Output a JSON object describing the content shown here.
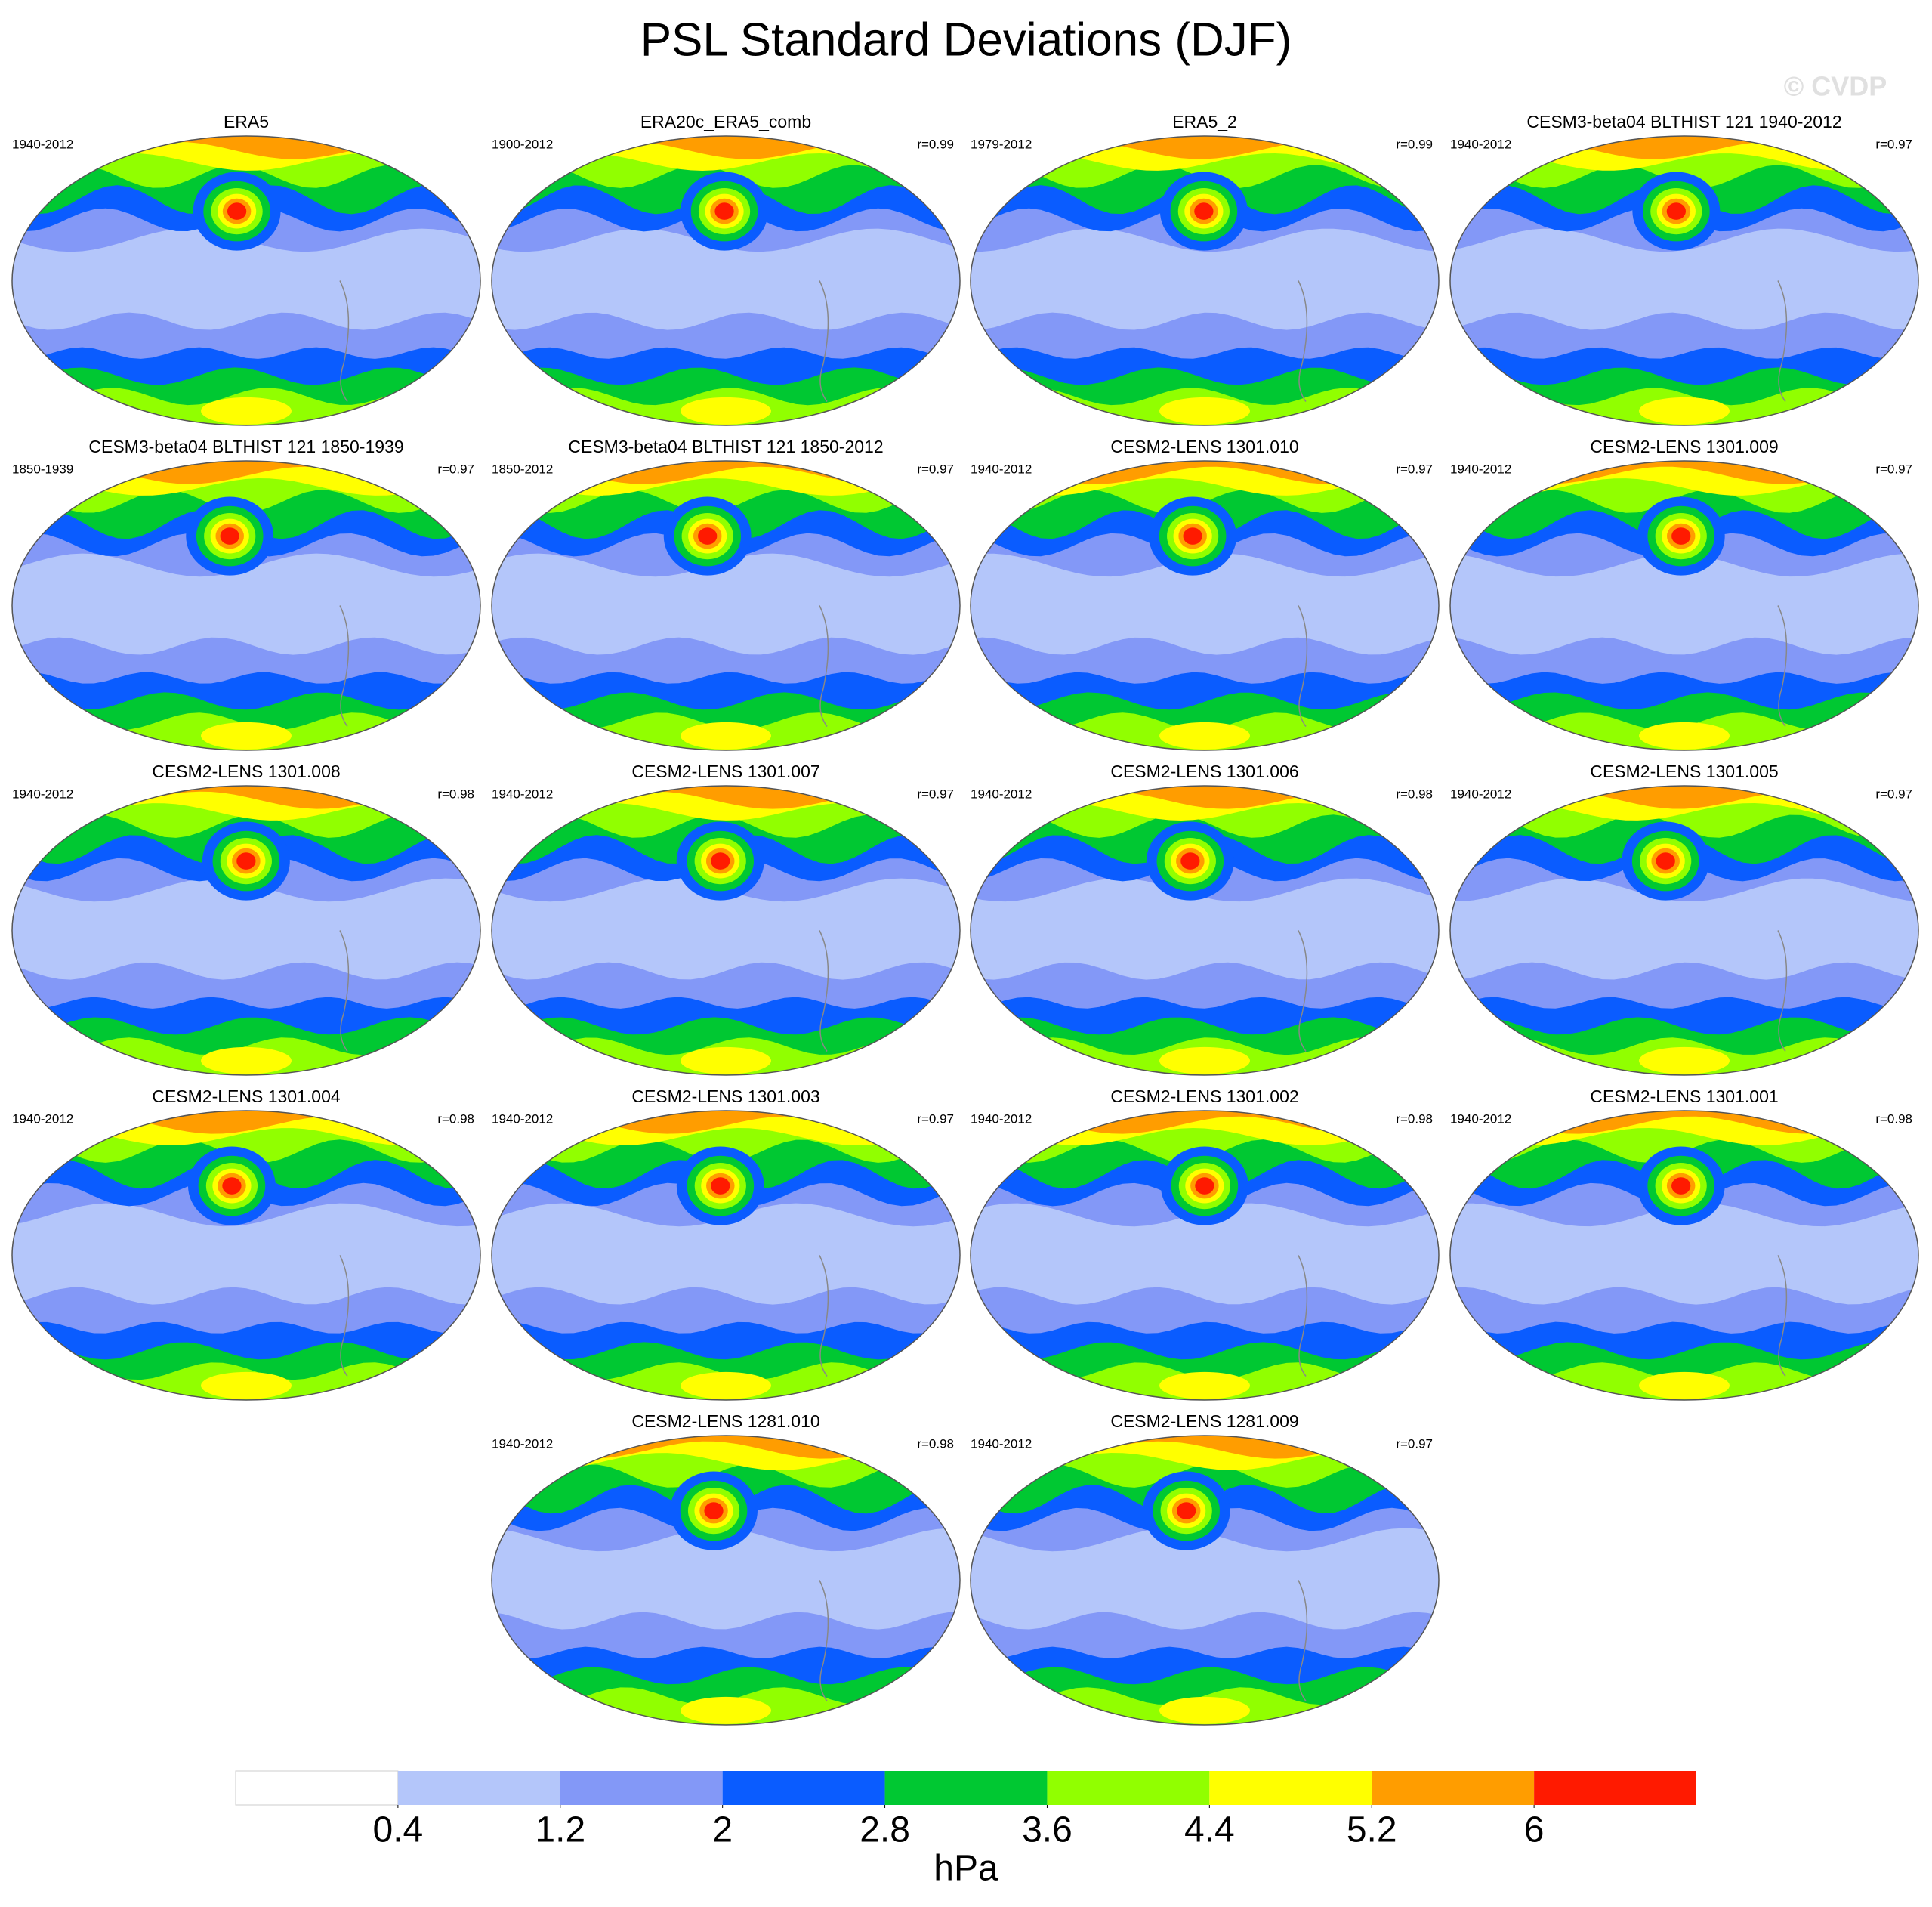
{
  "title": "PSL Standard Deviations (DJF)",
  "watermark": "© CVDP",
  "panels": [
    {
      "title": "ERA5",
      "period": "1940-2012",
      "r": null
    },
    {
      "title": "ERA20c_ERA5_comb",
      "period": "1900-2012",
      "r": "r=0.99"
    },
    {
      "title": "ERA5_2",
      "period": "1979-2012",
      "r": "r=0.99"
    },
    {
      "title": "CESM3-beta04 BLTHIST 121 1940-2012",
      "period": "1940-2012",
      "r": "r=0.97"
    },
    {
      "title": "CESM3-beta04 BLTHIST 121 1850-1939",
      "period": "1850-1939",
      "r": "r=0.97"
    },
    {
      "title": "CESM3-beta04 BLTHIST 121 1850-2012",
      "period": "1850-2012",
      "r": "r=0.97"
    },
    {
      "title": "CESM2-LENS 1301.010",
      "period": "1940-2012",
      "r": "r=0.97"
    },
    {
      "title": "CESM2-LENS 1301.009",
      "period": "1940-2012",
      "r": "r=0.97"
    },
    {
      "title": "CESM2-LENS 1301.008",
      "period": "1940-2012",
      "r": "r=0.98"
    },
    {
      "title": "CESM2-LENS 1301.007",
      "period": "1940-2012",
      "r": "r=0.97"
    },
    {
      "title": "CESM2-LENS 1301.006",
      "period": "1940-2012",
      "r": "r=0.98"
    },
    {
      "title": "CESM2-LENS 1301.005",
      "period": "1940-2012",
      "r": "r=0.97"
    },
    {
      "title": "CESM2-LENS 1301.004",
      "period": "1940-2012",
      "r": "r=0.98"
    },
    {
      "title": "CESM2-LENS 1301.003",
      "period": "1940-2012",
      "r": "r=0.97"
    },
    {
      "title": "CESM2-LENS 1301.002",
      "period": "1940-2012",
      "r": "r=0.98"
    },
    {
      "title": "CESM2-LENS 1301.001",
      "period": "1940-2012",
      "r": "r=0.98"
    },
    {
      "title": "CESM2-LENS 1281.010",
      "period": "1940-2012",
      "r": "r=0.98"
    },
    {
      "title": "CESM2-LENS 1281.009",
      "period": "1940-2012",
      "r": "r=0.97"
    }
  ],
  "colorbar": {
    "levels": [
      0.4,
      1.2,
      2,
      2.8,
      3.6,
      4.4,
      5.2,
      6
    ],
    "colors": [
      "#ffffff",
      "#b4c6fa",
      "#8398f7",
      "#0a5cff",
      "#00c832",
      "#91ff00",
      "#ffff00",
      "#ff9d00",
      "#ff1a00"
    ],
    "label": "hPa"
  }
}
